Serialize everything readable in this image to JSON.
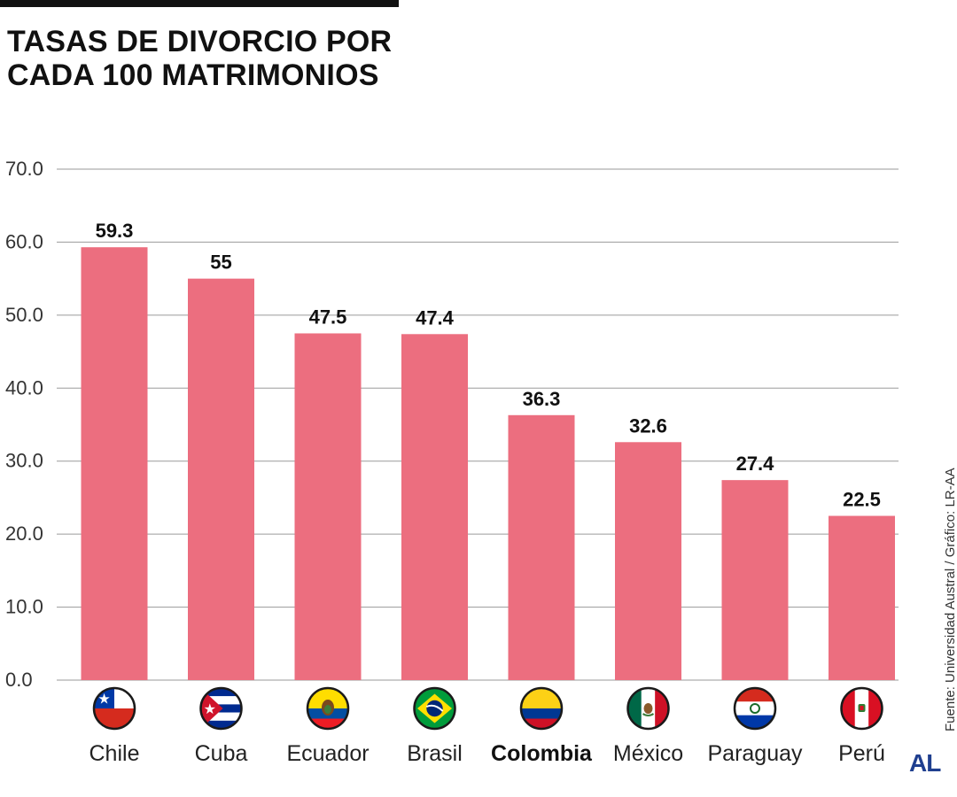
{
  "header": {
    "title_line1": "TASAS DE DIVORCIO POR",
    "title_line2": "CADA 100 MATRIMONIOS"
  },
  "source_text": "Fuente: Universidad Austral / Gráfico: LR-AA",
  "logo_text": "AL",
  "colors": {
    "bar": "#ec6e7f",
    "grid": "#9a9a9a",
    "text": "#111111"
  },
  "chart_data": {
    "type": "bar",
    "title": "TASAS DE DIVORCIO POR CADA 100 MATRIMONIOS",
    "xlabel": "",
    "ylabel": "",
    "ylim": [
      0,
      70
    ],
    "y_ticks": [
      "0.0",
      "10.0",
      "20.0",
      "30.0",
      "40.0",
      "50.0",
      "60.0",
      "70.0"
    ],
    "grid": true,
    "categories": [
      "Chile",
      "Cuba",
      "Ecuador",
      "Brasil",
      "Colombia",
      "México",
      "Paraguay",
      "Perú"
    ],
    "values": [
      59.3,
      55,
      47.5,
      47.4,
      36.3,
      32.6,
      27.4,
      22.5
    ],
    "value_labels": [
      "59.3",
      "55",
      "47.5",
      "47.4",
      "36.3",
      "32.6",
      "27.4",
      "22.5"
    ],
    "highlight_category": "Colombia",
    "category_icons": [
      "chile-flag-icon",
      "cuba-flag-icon",
      "ecuador-flag-icon",
      "brazil-flag-icon",
      "colombia-flag-icon",
      "mexico-flag-icon",
      "paraguay-flag-icon",
      "peru-flag-icon"
    ]
  }
}
